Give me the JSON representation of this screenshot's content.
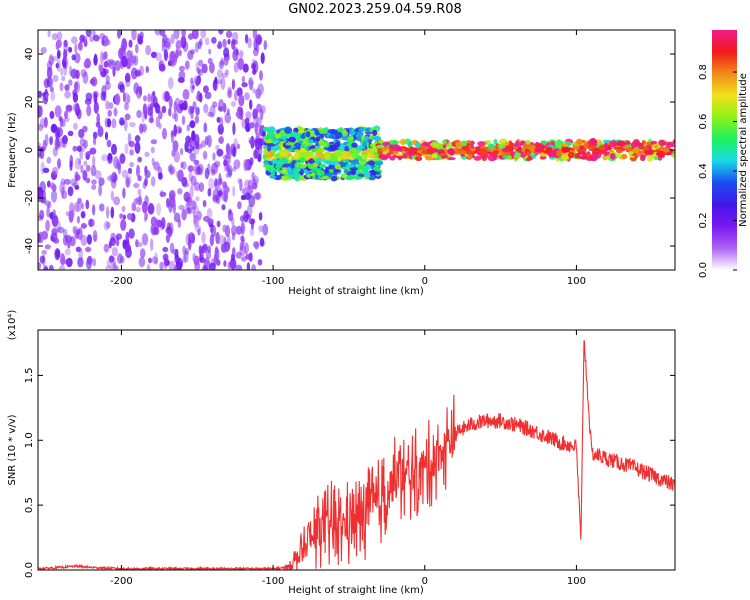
{
  "title": "GN02.2023.259.04.59.R08",
  "colors": {
    "snr_line": "#f03030",
    "axes": "#000000",
    "colorbar_stops": [
      "#ffffff",
      "#ad63f4",
      "#7a18f0",
      "#4018ea",
      "#1a4cf0",
      "#19d8e8",
      "#1cf25c",
      "#8ef21a",
      "#f2e21a",
      "#f28a1a",
      "#f21a1a",
      "#f21a8a"
    ]
  },
  "chart_data": [
    {
      "type": "heatmap",
      "title": "GN02.2023.259.04.59.R08",
      "xlabel": "Height of straight line (km)",
      "ylabel": "Frequency (Hz)",
      "xlim": [
        -255,
        165
      ],
      "ylim": [
        -50,
        50
      ],
      "xticks": [
        -200,
        -100,
        0,
        100
      ],
      "yticks": [
        -40,
        -20,
        0,
        20,
        40
      ],
      "colorbar": {
        "label": "Normalized spectral amplitude",
        "range": [
          0.0,
          0.97
        ],
        "ticks": [
          "0.0",
          "0.2",
          "0.4",
          "0.6",
          "0.8"
        ]
      },
      "regions": [
        {
          "x_range": [
            -255,
            -105
          ],
          "y_range": [
            -50,
            50
          ],
          "level": 0.15,
          "description": "scattered speckle"
        },
        {
          "x_range": [
            -105,
            -30
          ],
          "y_range": [
            -8,
            5
          ],
          "level": 0.45,
          "description": "noisy band"
        },
        {
          "x_range": [
            -30,
            165
          ],
          "y_range": [
            -3,
            3
          ],
          "level": 0.8,
          "description": "narrow strong band near 0 Hz"
        }
      ]
    },
    {
      "type": "line",
      "xlabel": "Height of straight line (km)",
      "ylabel": "SNR (10 * v/v)",
      "ymultiplier": "(x10⁴)",
      "xlim": [
        -255,
        165
      ],
      "ylim": [
        0,
        1.85
      ],
      "xticks": [
        -200,
        -100,
        0,
        100
      ],
      "yticks": [
        "0.0",
        "0.5",
        "1.0",
        "1.5"
      ],
      "series": [
        {
          "x": [
            -255,
            -240,
            -230,
            -220,
            -200,
            -150,
            -100,
            -90,
            -80,
            -70,
            -60,
            -50,
            -40,
            -30,
            -20,
            -10,
            0,
            10,
            20,
            30,
            40,
            50,
            60,
            70,
            80,
            90,
            100,
            103,
            105,
            110,
            120,
            140,
            165
          ],
          "values": [
            0.01,
            0.02,
            0.03,
            0.02,
            0.01,
            0.01,
            0.01,
            0.02,
            0.15,
            0.3,
            0.35,
            0.35,
            0.42,
            0.52,
            0.68,
            0.72,
            0.78,
            0.9,
            1.05,
            1.12,
            1.15,
            1.15,
            1.12,
            1.08,
            1.03,
            0.98,
            0.95,
            0.2,
            1.8,
            0.9,
            0.86,
            0.78,
            0.65
          ]
        }
      ]
    }
  ]
}
